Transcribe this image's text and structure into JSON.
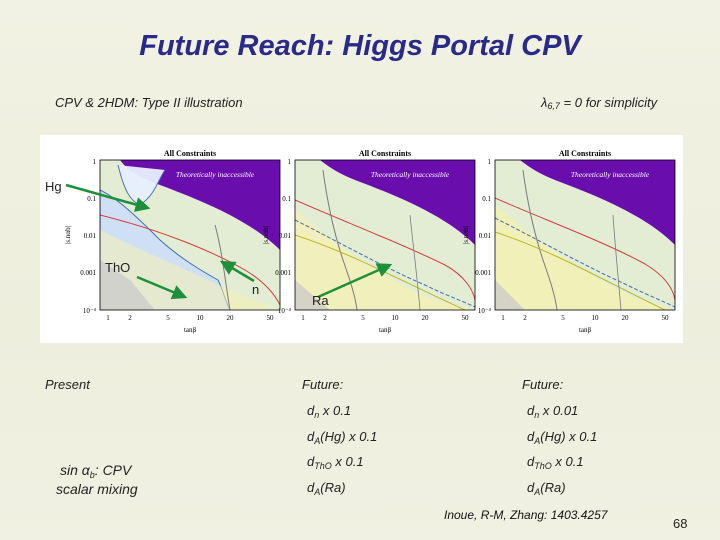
{
  "slide": {
    "title": "Future Reach: Higgs Portal CPV",
    "subtitle_left": "CPV & 2HDM: Type II illustration",
    "subtitle_right_symbol": "λ",
    "subtitle_right_sub": "6,7",
    "subtitle_right_text": " = 0 for simplicity",
    "page_number": "68",
    "reference": "Inoue, R-M, Zhang: 1403.4257"
  },
  "panels": [
    {
      "title": "All Constraints",
      "region_label": "Theoretically inaccessible",
      "xlabel": "tanβ",
      "ylabel": "|s.nαb|",
      "yticks": [
        "1",
        "0.1",
        "0.01",
        "0.001",
        "10⁻⁴"
      ],
      "xticks": [
        "1",
        "2",
        "5",
        "10",
        "20",
        "50"
      ]
    },
    {
      "title": "All Constraints",
      "region_label": "Theoretically inaccessible",
      "xlabel": "tanβ",
      "ylabel": "|s.nαb|",
      "yticks": [
        "1",
        "0.1",
        "0.01",
        "0.001",
        "10⁻⁴"
      ],
      "xticks": [
        "1",
        "2",
        "5",
        "10",
        "20",
        "50"
      ]
    },
    {
      "title": "All Constraints",
      "region_label": "Theoretically inaccessible",
      "xlabel": "tanβ",
      "ylabel": "|s.nαb|",
      "yticks": [
        "1",
        "0.1",
        "0.01",
        "0.001",
        "10⁻⁴"
      ],
      "xticks": [
        "1",
        "2",
        "5",
        "10",
        "20",
        "50"
      ]
    }
  ],
  "annotations": {
    "hg": "Hg",
    "tho": "ThO",
    "n": "n",
    "ra": "Ra"
  },
  "columns": {
    "present": {
      "heading": "Present",
      "mixing_pre": "sin ",
      "mixing_alpha": "α",
      "mixing_sub": "b",
      "mixing_post": ": CPV",
      "mixing_line2": "scalar mixing"
    },
    "future1": {
      "heading": "Future:",
      "items": [
        {
          "base": "d",
          "sub": "n",
          "rest": " x 0.1"
        },
        {
          "base": "d",
          "sub": "A",
          "rest": "(Hg) x 0.1"
        },
        {
          "base": "d",
          "sub": "ThO",
          "rest": " x 0.1"
        },
        {
          "base": "d",
          "sub": "A",
          "rest": "(Ra)"
        }
      ]
    },
    "future2": {
      "heading": "Future:",
      "items": [
        {
          "base": "d",
          "sub": "n",
          "rest": " x 0.01"
        },
        {
          "base": "d",
          "sub": "A",
          "rest": "(Hg) x 0.1"
        },
        {
          "base": "d",
          "sub": "ThO",
          "rest": " x 0.1"
        },
        {
          "base": "d",
          "sub": "A",
          "rest": "(Ra)"
        }
      ]
    }
  },
  "colors": {
    "title": "#2a2a88",
    "inaccessible": "#6a0dad",
    "arrow": "#1e8f3a",
    "hg_region": "#cfe0f5",
    "allowed": "#e3edd3",
    "yellow_region": "#f6f0b0"
  }
}
